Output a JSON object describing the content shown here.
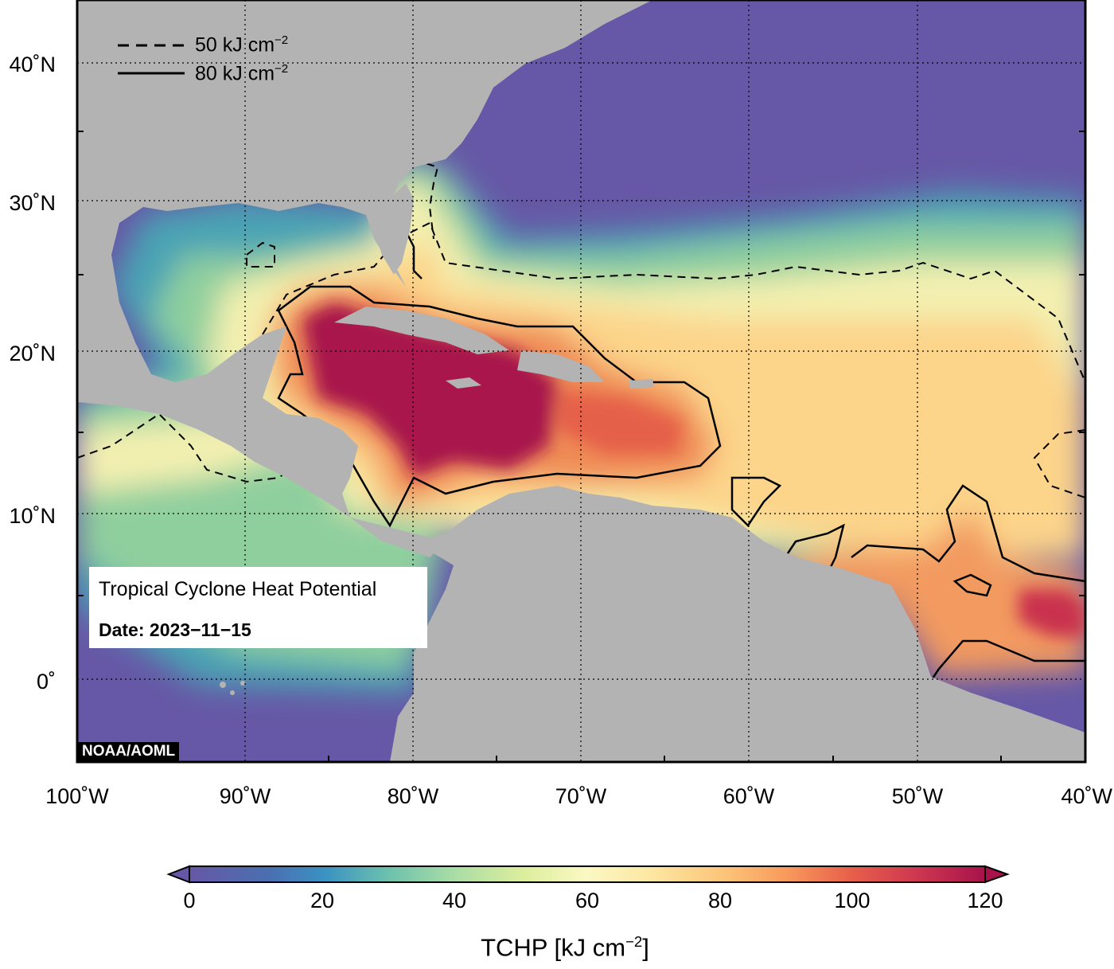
{
  "map": {
    "lat_labels": [
      "40˚N",
      "30˚N",
      "20˚N",
      "10˚N",
      "0˚"
    ],
    "lon_labels": [
      "100˚W",
      "90˚W",
      "80˚W",
      "70˚W",
      "60˚W",
      "50˚W",
      "40˚W"
    ],
    "lon_range": [
      -100,
      -40
    ],
    "lat_range": [
      -5,
      45
    ]
  },
  "legend": {
    "dashed_label": "50 kJ cm",
    "solid_label": "80 kJ cm",
    "exponent": "−2"
  },
  "info": {
    "title": "Tropical Cyclone Heat Potential",
    "date": "Date: 2023−11−15"
  },
  "credit": "NOAA/AOML",
  "colorbar": {
    "ticks": [
      "0",
      "20",
      "40",
      "60",
      "80",
      "100",
      "120"
    ],
    "title": "TCHP [kJ cm",
    "title_exp": "−2",
    "title_close": "]",
    "range": [
      0,
      120
    ]
  },
  "colors": {
    "land": "#b3b3b3",
    "low": "#6658a6",
    "high": "#a8124b"
  }
}
